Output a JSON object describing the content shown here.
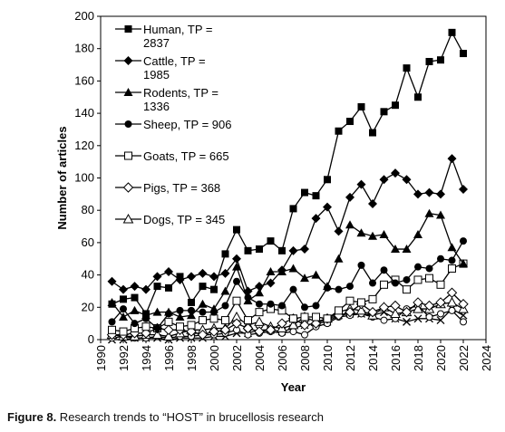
{
  "chart_data": {
    "type": "line",
    "xlabel": "Year",
    "ylabel": "Number of articles",
    "xlim": [
      1990,
      2024
    ],
    "ylim": [
      0,
      200
    ],
    "x_ticks": [
      1990,
      1992,
      1994,
      1996,
      1998,
      2000,
      2002,
      2004,
      2006,
      2008,
      2010,
      2012,
      2014,
      2016,
      2018,
      2020,
      2022,
      2024
    ],
    "y_ticks": [
      0,
      20,
      40,
      60,
      80,
      100,
      120,
      140,
      160,
      180,
      200
    ],
    "x": [
      1991,
      1992,
      1993,
      1994,
      1995,
      1996,
      1997,
      1998,
      1999,
      2000,
      2001,
      2002,
      2003,
      2004,
      2005,
      2006,
      2007,
      2008,
      2009,
      2010,
      2011,
      2012,
      2013,
      2014,
      2015,
      2016,
      2017,
      2018,
      2019,
      2020,
      2021,
      2022
    ],
    "legend_position": "top-left",
    "series": [
      {
        "name": "Human, TP = 2837",
        "marker": "square-filled",
        "values": [
          22,
          25,
          26,
          16,
          33,
          32,
          39,
          23,
          33,
          31,
          53,
          68,
          55,
          56,
          61,
          55,
          81,
          91,
          89,
          99,
          129,
          135,
          144,
          128,
          141,
          145,
          168,
          150,
          172,
          173,
          190,
          177
        ]
      },
      {
        "name": "Cattle, TP = 1985",
        "marker": "diamond-filled",
        "values": [
          36,
          31,
          33,
          31,
          39,
          42,
          37,
          39,
          41,
          39,
          41,
          50,
          30,
          33,
          35,
          43,
          55,
          56,
          75,
          82,
          67,
          88,
          96,
          84,
          99,
          103,
          99,
          90,
          91,
          90,
          112,
          93
        ]
      },
      {
        "name": "Rodents, TP = 1336",
        "marker": "triangle-filled",
        "values": [
          23,
          14,
          18,
          15,
          17,
          17,
          14,
          15,
          22,
          19,
          30,
          45,
          24,
          29,
          42,
          42,
          44,
          38,
          40,
          33,
          50,
          71,
          66,
          64,
          65,
          56,
          56,
          65,
          78,
          77,
          57,
          47
        ]
      },
      {
        "name": "Sheep, TP = 906",
        "marker": "circle-filled",
        "values": [
          11,
          19,
          10,
          13,
          7,
          16,
          18,
          18,
          17,
          17,
          21,
          36,
          26,
          22,
          22,
          21,
          31,
          20,
          21,
          32,
          31,
          33,
          46,
          35,
          43,
          35,
          37,
          45,
          44,
          50,
          49,
          61
        ]
      },
      {
        "name": "Goats, TP = 665",
        "marker": "square-open",
        "values": [
          6,
          5,
          7,
          8,
          7,
          11,
          8,
          9,
          12,
          13,
          12,
          24,
          12,
          17,
          19,
          18,
          13,
          14,
          14,
          13,
          18,
          24,
          23,
          25,
          34,
          37,
          31,
          37,
          38,
          34,
          44,
          47
        ]
      },
      {
        "name": "Pigs, TP = 368",
        "marker": "diamond-open",
        "values": [
          3,
          3,
          4,
          4,
          7,
          6,
          6,
          5,
          3,
          5,
          6,
          10,
          7,
          5,
          6,
          10,
          13,
          9,
          10,
          13,
          15,
          17,
          22,
          17,
          20,
          21,
          17,
          23,
          21,
          23,
          29,
          22
        ]
      },
      {
        "name": "Dogs, TP = 345",
        "marker": "triangle-open",
        "values": [
          3,
          2,
          2,
          3,
          3,
          2,
          4,
          6,
          6,
          7,
          7,
          14,
          9,
          11,
          8,
          7,
          9,
          14,
          11,
          13,
          17,
          19,
          18,
          15,
          20,
          16,
          17,
          19,
          19,
          22,
          23,
          19
        ]
      },
      {
        "name": "",
        "marker": "circle-open",
        "values": [
          1,
          2,
          1,
          1,
          2,
          1,
          2,
          2,
          3,
          3,
          4,
          6,
          3,
          4,
          5,
          4,
          5,
          3,
          8,
          10,
          14,
          15,
          16,
          14,
          12,
          13,
          19,
          21,
          14,
          16,
          18,
          11
        ]
      },
      {
        "name": "",
        "marker": "x",
        "values": [
          0,
          0,
          1,
          1,
          1,
          0,
          1,
          1,
          1,
          2,
          2,
          4,
          4,
          6,
          6,
          5,
          7,
          9,
          10,
          11,
          15,
          16,
          16,
          15,
          17,
          13,
          11,
          13,
          13,
          12,
          19,
          15
        ]
      }
    ]
  },
  "caption": {
    "label": "Figure 8.",
    "text": " Research trends to “HOST” in brucellosis research"
  }
}
